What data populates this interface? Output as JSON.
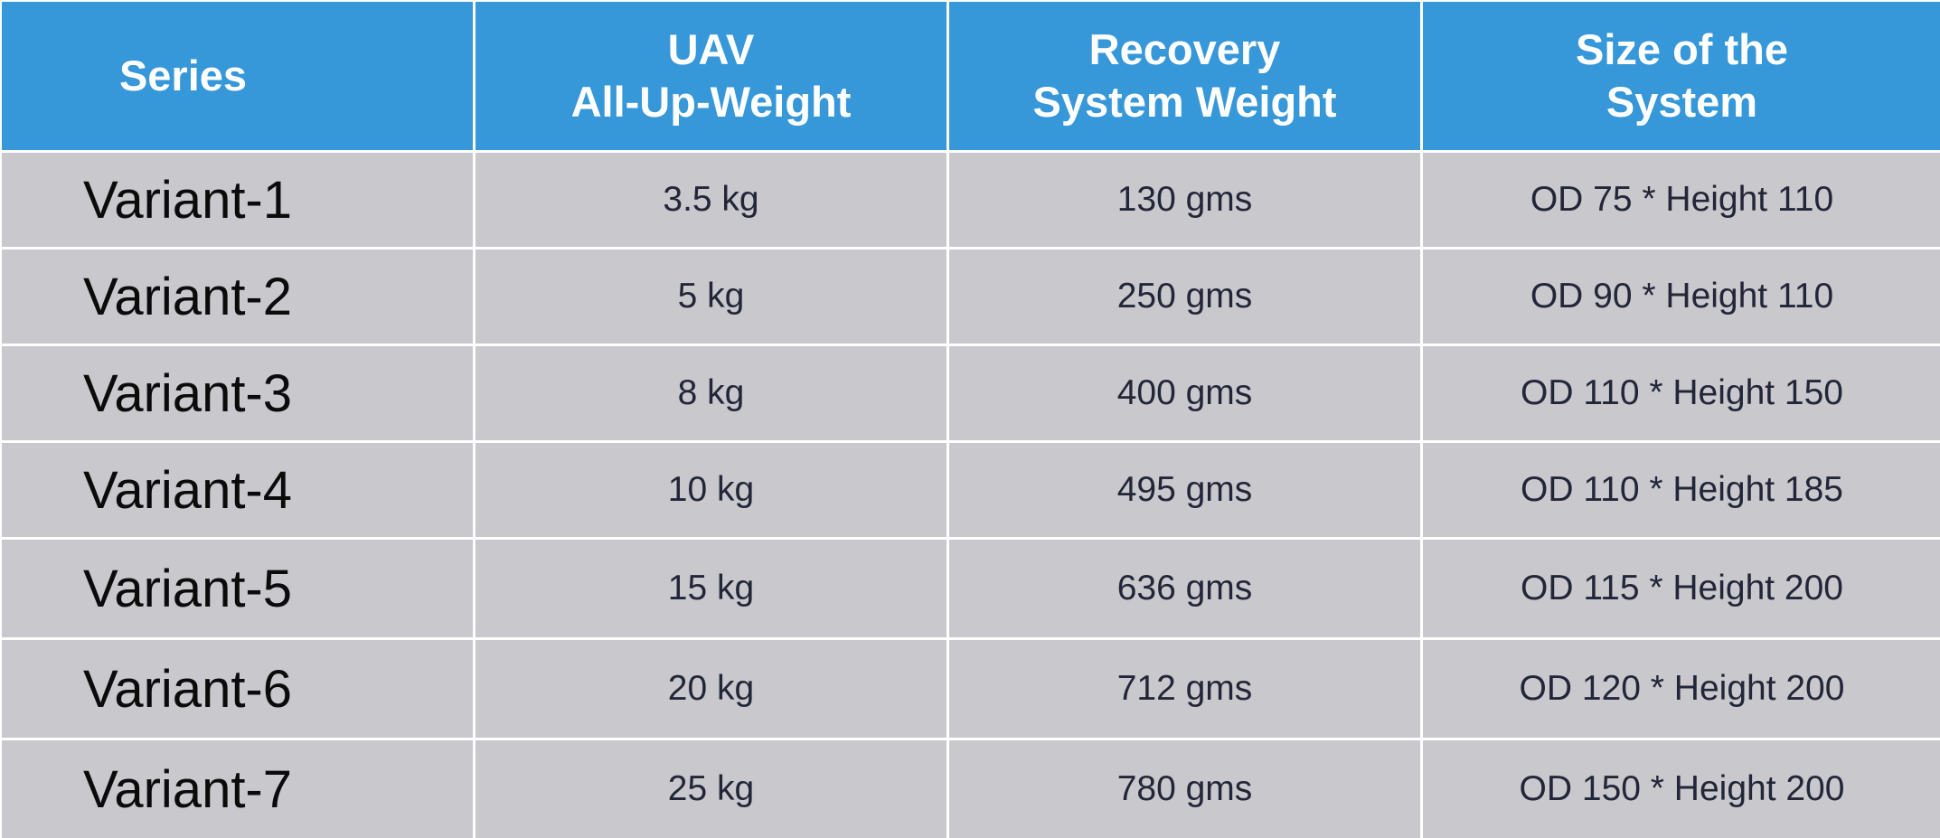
{
  "table": {
    "headers": [
      "Series",
      "UAV\nAll-Up-Weight",
      "Recovery\nSystem Weight",
      "Size of the\nSystem"
    ],
    "rows": [
      [
        "Variant-1",
        "3.5 kg",
        "130 gms",
        "OD 75 * Height 110"
      ],
      [
        "Variant-2",
        "5 kg",
        "250 gms",
        "OD 90 * Height 110"
      ],
      [
        "Variant-3",
        "8 kg",
        "400 gms",
        "OD 110 * Height 150"
      ],
      [
        "Variant-4",
        "10 kg",
        "495 gms",
        "OD 110 * Height 185"
      ],
      [
        "Variant-5",
        "15 kg",
        "636 gms",
        "OD 115 * Height 200"
      ],
      [
        "Variant-6",
        "20 kg",
        "712 gms",
        "OD 120 * Height 200"
      ],
      [
        "Variant-7",
        "25 kg",
        "780 gms",
        "OD 150 * Height 200"
      ]
    ]
  },
  "colors": {
    "header_bg": "#3697d9",
    "row_bg": "#c8c8cd",
    "header_text": "#ffffff",
    "body_text": "#222638"
  }
}
